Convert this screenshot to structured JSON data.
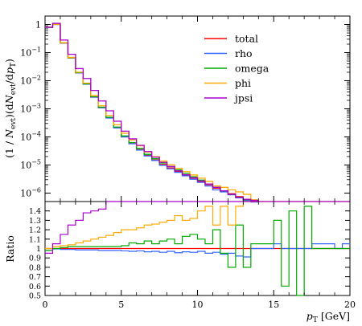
{
  "chart_data": [
    {
      "panel": "main",
      "type": "line",
      "steps": true,
      "ylabel": "(1 / N_evt) (dN_evt / dp_T)",
      "ylabel_parts": {
        "open1": "(1 / ",
        "N1": "N",
        "evt1": "evt",
        "mid": ")(d",
        "N2": "N",
        "evt2": "evt",
        "slash": "/d",
        "p": "p",
        "T": "T",
        "close": ")"
      },
      "yscale": "log",
      "ylim": [
        5e-07,
        2
      ],
      "xlim": [
        0,
        20
      ],
      "y_tick_labels": [
        {
          "value": 1,
          "base": "1",
          "exp": ""
        },
        {
          "value": 0.1,
          "base": "10",
          "exp": "−1"
        },
        {
          "value": 0.01,
          "base": "10",
          "exp": "−2"
        },
        {
          "value": 0.001,
          "base": "10",
          "exp": "−3"
        },
        {
          "value": 0.0001,
          "base": "10",
          "exp": "−4"
        },
        {
          "value": 1e-05,
          "base": "10",
          "exp": "−5"
        },
        {
          "value": 1e-06,
          "base": "10",
          "exp": "−6"
        }
      ],
      "legend_position": "top-right",
      "bin_edges": [
        0,
        0.5,
        1,
        1.5,
        2,
        2.5,
        3,
        3.5,
        4,
        4.5,
        5,
        5.5,
        6,
        6.5,
        7,
        7.5,
        8,
        8.5,
        9,
        9.5,
        10,
        10.5,
        11,
        11.5,
        12,
        12.5,
        13,
        13.5,
        14
      ],
      "series": [
        {
          "name": "total",
          "color": "#ff0000",
          "values": [
            0.8,
            1.0,
            0.22,
            0.065,
            0.019,
            0.0075,
            0.0026,
            0.0011,
            0.00048,
            0.00021,
            0.0001,
            5.8e-05,
            3.5e-05,
            2.2e-05,
            1.5e-05,
            1.05e-05,
            7.8e-06,
            5.9e-06,
            4.4e-06,
            3.4e-06,
            2.6e-06,
            2e-06,
            1.5e-06,
            1.2e-06,
            9.5e-07,
            7.5e-07,
            6e-07,
            5.2e-07
          ]
        },
        {
          "name": "rho",
          "color": "#3366ff",
          "values": [
            0.79,
            1.0,
            0.22,
            0.066,
            0.019,
            0.0075,
            0.0026,
            0.0011,
            0.00047,
            0.00021,
            0.0001,
            5.7e-05,
            3.4e-05,
            2.1e-05,
            1.45e-05,
            9.8e-06,
            7.3e-06,
            5.5e-06,
            4.1e-06,
            3.1e-06,
            2.4e-06,
            1.8e-06,
            1.3e-06,
            1.1e-06,
            8.7e-07,
            6.8e-07,
            5.5e-07,
            4.8e-07
          ]
        },
        {
          "name": "omega",
          "color": "#00aa00",
          "values": [
            0.8,
            1.01,
            0.223,
            0.066,
            0.0193,
            0.0077,
            0.0027,
            0.00114,
            0.0005,
            0.000224,
            0.000108,
            6.3e-05,
            3.9e-05,
            2.4e-05,
            1.67e-05,
            1.18e-05,
            8.8e-06,
            6.7e-06,
            5e-06,
            3.8e-06,
            2.9e-06,
            2.1e-06,
            1.6e-06,
            1.2e-06,
            9e-07,
            7e-07,
            5.8e-07,
            5e-07
          ]
        },
        {
          "name": "phi",
          "color": "#ffaa00",
          "values": [
            0.81,
            1.02,
            0.226,
            0.068,
            0.0201,
            0.0082,
            0.00295,
            0.00128,
            0.00058,
            0.00027,
            0.000135,
            7.8e-05,
            4.8e-05,
            2.9e-05,
            1.98e-05,
            1.38e-05,
            1.01e-05,
            7.6e-06,
            5.8e-06,
            4.4e-06,
            3.4e-06,
            2.6e-06,
            1.8e-06,
            1.6e-06,
            1.3e-06,
            1.1e-06,
            9e-07,
            5.8e-07
          ]
        },
        {
          "name": "jpsi",
          "color": "#aa00cc",
          "values": [
            0.8,
            1.1,
            0.28,
            0.087,
            0.027,
            0.012,
            0.0045,
            0.0019,
            0.00085,
            0.00036,
            0.00016,
            8.5e-05,
            5e-05,
            3e-05,
            1.9e-05,
            1.25e-05,
            8.8e-06,
            6.2e-06,
            4.5e-06,
            3.5e-06,
            2.7e-06,
            2.1e-06,
            1.6e-06,
            1.2e-06,
            9e-07,
            7e-07,
            6e-07,
            5.5e-07
          ]
        }
      ]
    },
    {
      "panel": "ratio",
      "type": "line",
      "steps": true,
      "ylabel": "Ratio",
      "xlabel_base": "p",
      "xlabel_sub": "T",
      "xlabel_unit": "[GeV]",
      "ylim": [
        0.5,
        1.5
      ],
      "xlim": [
        0,
        20
      ],
      "x_ticks": [
        0,
        5,
        10,
        15,
        20
      ],
      "y_ticks": [
        0.5,
        0.6,
        0.7,
        0.8,
        0.9,
        1,
        1.1,
        1.2,
        1.3,
        1.4
      ],
      "bin_edges": [
        0,
        0.5,
        1,
        1.5,
        2,
        2.5,
        3,
        3.5,
        4,
        4.5,
        5,
        5.5,
        6,
        6.5,
        7,
        7.5,
        8,
        8.5,
        9,
        9.5,
        10,
        10.5,
        11,
        11.5,
        12,
        12.5,
        13,
        13.5,
        14,
        14.5,
        15,
        15.5,
        16,
        16.5,
        17,
        17.5,
        18,
        18.5,
        19,
        19.5,
        20
      ],
      "series": [
        {
          "name": "total",
          "color": "#ff0000",
          "values": [
            1,
            1,
            1,
            1,
            1,
            1,
            1,
            1,
            1,
            1,
            1,
            1,
            1,
            1,
            1,
            1,
            1,
            1,
            1,
            1,
            1,
            1,
            1,
            1,
            1,
            1,
            1,
            1,
            1,
            1,
            1,
            1,
            1,
            1,
            1,
            1,
            1,
            1,
            1,
            1
          ]
        },
        {
          "name": "rho",
          "color": "#3366ff",
          "values": [
            0.98,
            0.995,
            0.99,
            0.99,
            0.985,
            0.985,
            0.985,
            0.98,
            0.98,
            0.98,
            0.975,
            0.97,
            0.975,
            0.965,
            0.97,
            0.96,
            0.97,
            0.955,
            0.965,
            0.96,
            0.97,
            0.95,
            0.96,
            0.94,
            0.95,
            0.92,
            0.91,
            1.0,
            1.0,
            1.0,
            1.05,
            1.0,
            1.0,
            1.0,
            1.0,
            1.05,
            1.05,
            1.05,
            1.0,
            1.05
          ]
        },
        {
          "name": "omega",
          "color": "#00aa00",
          "values": [
            0.98,
            1.0,
            1.01,
            1.02,
            1.02,
            1.02,
            1.02,
            1.02,
            1.02,
            1.02,
            1.03,
            1.06,
            1.05,
            1.08,
            1.05,
            1.08,
            1.1,
            1.05,
            1.13,
            1.15,
            1.1,
            1.05,
            1.2,
            0.95,
            0.8,
            1.25,
            0.8,
            1.05,
            1.05,
            1.05,
            1.3,
            0.6,
            1.4,
            0.5,
            1.45,
            1.0,
            1.0,
            1.0,
            1.0,
            1.0
          ]
        },
        {
          "name": "phi",
          "color": "#ffaa00",
          "values": [
            1.0,
            1.02,
            1.03,
            1.04,
            1.06,
            1.08,
            1.1,
            1.12,
            1.14,
            1.17,
            1.2,
            1.2,
            1.22,
            1.25,
            1.26,
            1.28,
            1.3,
            1.35,
            1.3,
            1.32,
            1.4,
            1.45,
            1.25,
            1.45,
            1.25,
            1.45,
            1.5,
            1.5,
            1.5,
            1.5,
            1.5,
            1.5,
            1.5,
            1.5,
            1.5,
            1.5,
            1.5,
            1.5,
            1.5,
            1.5
          ]
        },
        {
          "name": "jpsi",
          "color": "#aa00cc",
          "values": [
            0.95,
            1.05,
            1.15,
            1.25,
            1.3,
            1.38,
            1.4,
            1.42,
            1.5,
            1.5,
            1.5,
            1.5,
            1.5,
            1.5,
            1.5,
            1.5,
            1.5,
            1.5,
            1.5,
            1.5,
            1.5,
            1.5,
            1.5,
            1.5,
            1.5,
            1.5,
            1.5,
            1.5,
            1.5,
            1.5,
            1.5,
            1.5,
            1.5,
            1.5,
            1.5,
            1.5,
            1.5,
            1.5,
            1.5,
            1.5
          ]
        }
      ]
    }
  ]
}
